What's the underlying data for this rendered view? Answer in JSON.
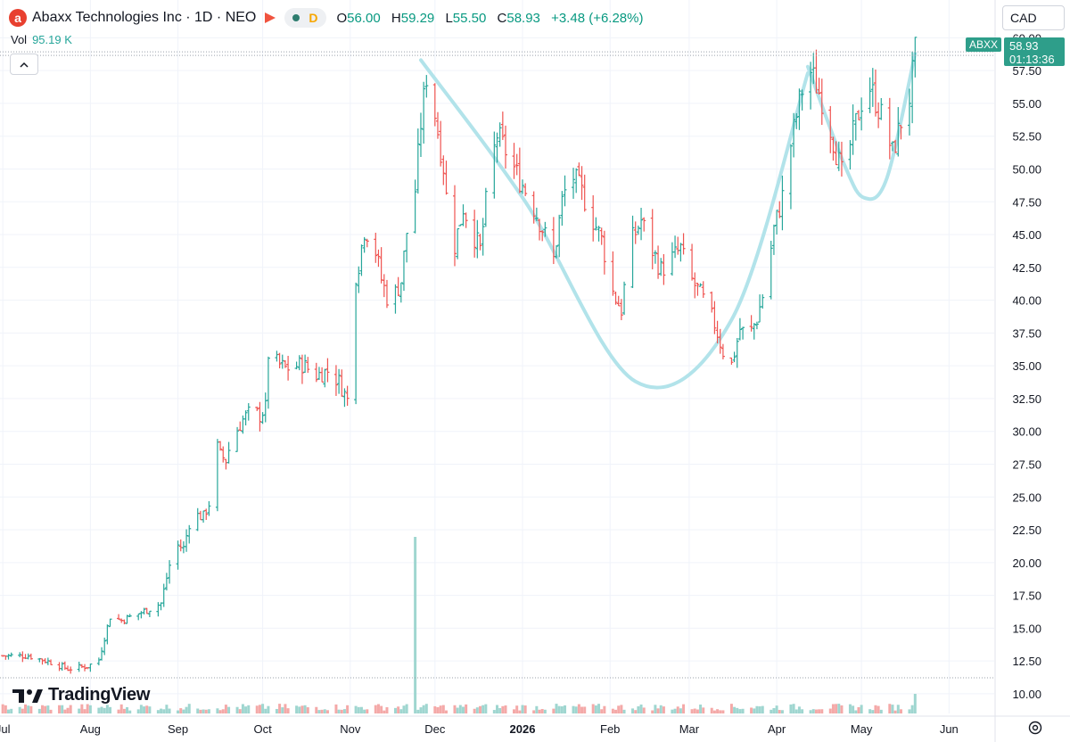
{
  "header": {
    "logo_letter": "a",
    "symbol_title": "Abaxx Technologies Inc · 1D · NEO",
    "interval_letter": "D",
    "ohlc": {
      "o_label": "O",
      "o": "56.00",
      "h_label": "H",
      "h": "59.29",
      "l_label": "L",
      "l": "55.50",
      "c_label": "C",
      "c": "58.93",
      "change": "+3.48 (+6.28%)"
    }
  },
  "volume_row": {
    "label": "Vol",
    "value": "95.19 K"
  },
  "currency": "CAD",
  "price_tag": {
    "symbol": "ABXX",
    "price": "58.93",
    "countdown": "01:13:36"
  },
  "brand": "TradingView",
  "colors": {
    "up": "#26a69a",
    "down": "#ef5350",
    "pattern": "#b2e3ea",
    "tag": "#2e9e8a"
  },
  "chart_data": {
    "type": "bar",
    "y_ticks": [
      "10.00",
      "12.50",
      "15.00",
      "17.50",
      "20.00",
      "22.50",
      "25.00",
      "27.50",
      "30.00",
      "32.50",
      "35.00",
      "37.50",
      "40.00",
      "42.50",
      "45.00",
      "47.50",
      "50.00",
      "52.50",
      "55.00",
      "57.50",
      "60.00"
    ],
    "x_ticks": [
      {
        "label": "Jul",
        "x": "2025-07-01"
      },
      {
        "label": "Aug",
        "x": "2025-08-01"
      },
      {
        "label": "Sep",
        "x": "2025-09-01"
      },
      {
        "label": "Oct",
        "x": "2025-10-01"
      },
      {
        "label": "Nov",
        "x": "2025-11-01"
      },
      {
        "label": "Dec",
        "x": "2025-12-01"
      },
      {
        "label": "2026",
        "x": "2026-01-01",
        "bold": true
      },
      {
        "label": "Feb",
        "x": "2026-02-01"
      },
      {
        "label": "Mar",
        "x": "2026-03-01"
      },
      {
        "label": "Apr",
        "x": "2026-04-01"
      },
      {
        "label": "May",
        "x": "2026-05-01"
      },
      {
        "label": "Jun",
        "x": "2026-06-01"
      }
    ],
    "ylim": [
      8.5,
      60.5
    ],
    "xlim": [
      "2025-06-30",
      "2026-06-17"
    ],
    "price_close": [
      [
        "2025-07-01",
        12.9
      ],
      [
        "2025-07-10",
        12.9
      ],
      [
        "2025-07-18",
        12.4
      ],
      [
        "2025-07-24",
        11.9
      ],
      [
        "2025-07-31",
        12.1
      ],
      [
        "2025-08-04",
        12.6
      ],
      [
        "2025-08-06",
        14.3
      ],
      [
        "2025-08-08",
        15.9
      ],
      [
        "2025-08-12",
        15.6
      ],
      [
        "2025-08-18",
        16.1
      ],
      [
        "2025-08-26",
        16.9
      ],
      [
        "2025-08-29",
        19.8
      ],
      [
        "2025-08-30",
        21.5
      ],
      [
        "2025-09-03",
        21.1
      ],
      [
        "2025-09-05",
        23.0
      ],
      [
        "2025-09-08",
        23.6
      ],
      [
        "2025-09-10",
        23.5
      ],
      [
        "2025-09-12",
        24.5
      ],
      [
        "2025-09-15",
        28.8
      ],
      [
        "2025-09-16",
        28.2
      ],
      [
        "2025-09-18",
        27.8
      ],
      [
        "2025-09-20",
        29.4
      ],
      [
        "2025-09-24",
        30.9
      ],
      [
        "2025-09-27",
        31.6
      ],
      [
        "2025-09-30",
        31.2
      ],
      [
        "2025-10-02",
        31.8
      ],
      [
        "2025-10-03",
        35.9
      ],
      [
        "2025-10-06",
        35.2
      ],
      [
        "2025-10-09",
        34.8
      ],
      [
        "2025-10-15",
        35.1
      ],
      [
        "2025-10-20",
        34.3
      ],
      [
        "2025-10-24",
        34.6
      ],
      [
        "2025-10-28",
        33.8
      ],
      [
        "2025-10-31",
        32.4
      ],
      [
        "2025-11-01",
        40.5
      ],
      [
        "2025-11-04",
        42.8
      ],
      [
        "2025-11-06",
        45.4
      ],
      [
        "2025-11-09",
        44.8
      ],
      [
        "2025-11-12",
        41.6
      ],
      [
        "2025-11-15",
        39.6
      ],
      [
        "2025-11-19",
        41.5
      ],
      [
        "2025-11-21",
        45.2
      ],
      [
        "2025-11-24",
        48.4
      ],
      [
        "2025-11-26",
        53.5
      ],
      [
        "2025-11-28",
        57.1
      ],
      [
        "2025-12-01",
        54.2
      ],
      [
        "2025-12-04",
        50.2
      ],
      [
        "2025-12-06",
        45.6
      ],
      [
        "2025-12-08",
        44.2
      ],
      [
        "2025-12-11",
        47.1
      ],
      [
        "2025-12-14",
        45.4
      ],
      [
        "2025-12-17",
        43.8
      ],
      [
        "2025-12-20",
        49.2
      ],
      [
        "2025-12-23",
        52.6
      ],
      [
        "2025-12-26",
        51.4
      ],
      [
        "2025-12-30",
        49.6
      ],
      [
        "2026-01-04",
        47.6
      ],
      [
        "2026-01-08",
        45.5
      ],
      [
        "2026-01-12",
        43.1
      ],
      [
        "2026-01-15",
        47.5
      ],
      [
        "2026-01-18",
        49.8
      ],
      [
        "2026-01-22",
        48.2
      ],
      [
        "2026-01-26",
        46.1
      ],
      [
        "2026-01-29",
        44.6
      ],
      [
        "2026-02-02",
        40.6
      ],
      [
        "2026-02-05",
        39.3
      ],
      [
        "2026-02-08",
        44.2
      ],
      [
        "2026-02-12",
        46.1
      ],
      [
        "2026-02-16",
        43.8
      ],
      [
        "2026-02-19",
        42.3
      ],
      [
        "2026-02-23",
        43.2
      ],
      [
        "2026-02-26",
        43.9
      ],
      [
        "2026-03-01",
        41.8
      ],
      [
        "2026-03-04",
        40.8
      ],
      [
        "2026-03-07",
        39.6
      ],
      [
        "2026-03-10",
        38.2
      ],
      [
        "2026-03-13",
        36.1
      ],
      [
        "2026-03-16",
        35.1
      ],
      [
        "2026-03-19",
        37.8
      ],
      [
        "2026-03-22",
        37.2
      ],
      [
        "2026-03-25",
        38.6
      ],
      [
        "2026-03-28",
        41.2
      ],
      [
        "2026-03-31",
        45.4
      ],
      [
        "2026-04-03",
        47.9
      ],
      [
        "2026-04-06",
        51.9
      ],
      [
        "2026-04-09",
        55.1
      ],
      [
        "2026-04-12",
        57.9
      ],
      [
        "2026-04-15",
        56.4
      ],
      [
        "2026-04-18",
        54.8
      ],
      [
        "2026-04-21",
        52.2
      ],
      [
        "2026-04-24",
        49.6
      ],
      [
        "2026-04-27",
        51.8
      ],
      [
        "2026-04-30",
        54.3
      ],
      [
        "2026-05-03",
        56.8
      ],
      [
        "2026-05-06",
        55.2
      ],
      [
        "2026-05-09",
        53.5
      ],
      [
        "2026-05-12",
        51.2
      ],
      [
        "2026-05-15",
        53.6
      ],
      [
        "2026-05-18",
        55.5
      ],
      [
        "2026-05-20",
        58.9
      ]
    ],
    "volume_spikes": [
      [
        "2025-11-01",
        1.6
      ],
      [
        "2025-11-24",
        9.0
      ],
      [
        "2026-05-20",
        1.0
      ]
    ],
    "pattern_curves": [
      {
        "name": "cup",
        "points": [
          [
            "2025-11-26",
            58.3
          ],
          [
            "2026-01-02",
            47.5
          ],
          [
            "2026-02-10",
            33.8
          ],
          [
            "2026-03-16",
            38.5
          ],
          [
            "2026-04-12",
            57.3
          ]
        ]
      },
      {
        "name": "handle",
        "points": [
          [
            "2026-04-12",
            57.8
          ],
          [
            "2026-04-25",
            50.3
          ],
          [
            "2026-05-02",
            47.8
          ],
          [
            "2026-05-10",
            49.3
          ],
          [
            "2026-05-20",
            58.8
          ]
        ]
      }
    ]
  }
}
